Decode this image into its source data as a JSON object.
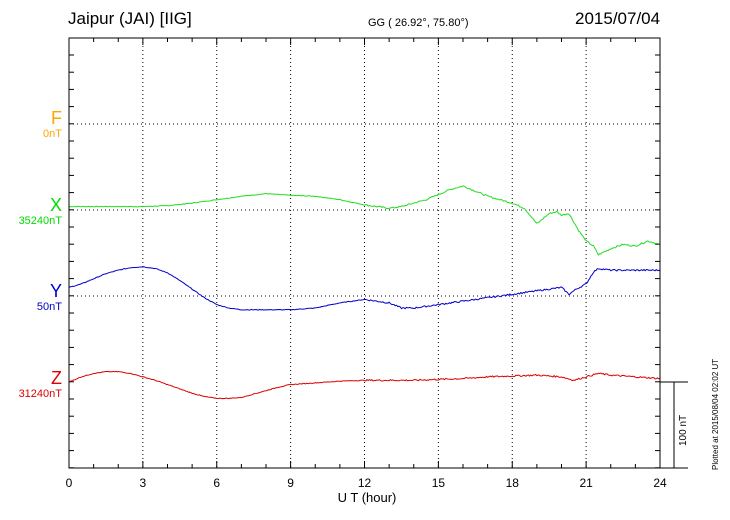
{
  "header": {
    "station": "Jaipur (JAI)  [IIG]",
    "coords": "GG ( 26.92°,  75.80°)",
    "date": "2015/07/04"
  },
  "footer": {
    "plotted": "Plotted at 2015/08/04 02:02 UT",
    "scale_label": "100 nT"
  },
  "chart_data": {
    "type": "line",
    "xlabel": "U T (hour)",
    "xlim": [
      0,
      24
    ],
    "xticks": [
      "0",
      "3",
      "6",
      "9",
      "12",
      "15",
      "18",
      "21",
      "24"
    ],
    "scale_bar_nT": 100,
    "grid": true,
    "channels": [
      {
        "name": "F",
        "baseline": "0nT",
        "color": "#FFA500"
      },
      {
        "name": "X",
        "baseline": "35240nT",
        "color": "#00DD00"
      },
      {
        "name": "Y",
        "baseline": "50nT",
        "color": "#0000CC"
      },
      {
        "name": "Z",
        "baseline": "31240nT",
        "color": "#DD0000"
      }
    ],
    "series": [
      {
        "name": "X",
        "color": "#22DD22",
        "x": [
          0,
          1,
          2,
          3,
          4,
          5,
          6,
          7,
          8,
          9,
          10,
          11,
          12,
          13,
          13.5,
          14,
          14.5,
          15,
          15.5,
          16,
          16.5,
          17,
          17.5,
          18,
          18.5,
          19,
          19.5,
          19.8,
          20,
          20.3,
          20.7,
          21,
          21.3,
          21.5,
          22,
          22.5,
          23,
          23.5,
          24
        ],
        "y": [
          4,
          4,
          4,
          4,
          5,
          8,
          12,
          16,
          19,
          17,
          16,
          12,
          6,
          2,
          4,
          8,
          12,
          18,
          24,
          28,
          22,
          16,
          12,
          8,
          2,
          -16,
          -4,
          -2,
          -6,
          -4,
          -24,
          -36,
          -42,
          -52,
          -45,
          -40,
          -42,
          -36,
          -40
        ]
      },
      {
        "name": "Y",
        "color": "#0000CC",
        "x": [
          0,
          0.5,
          1,
          1.5,
          2,
          2.5,
          3,
          3.5,
          4,
          4.5,
          5,
          5.5,
          6,
          6.5,
          7,
          8,
          9,
          10,
          11,
          12,
          12.5,
          13,
          13.5,
          14,
          15,
          16,
          17,
          18,
          19,
          20,
          20.3,
          20.6,
          21,
          21.3,
          21.5,
          22,
          23,
          24
        ],
        "y": [
          10,
          14,
          20,
          26,
          30,
          33,
          34,
          32,
          27,
          18,
          8,
          -2,
          -10,
          -14,
          -16,
          -16,
          -16,
          -14,
          -8,
          -4,
          -6,
          -8,
          -14,
          -14,
          -10,
          -6,
          -2,
          2,
          6,
          10,
          2,
          8,
          14,
          28,
          32,
          30,
          30,
          30
        ]
      },
      {
        "name": "Z",
        "color": "#DD0000",
        "x": [
          0,
          0.5,
          1,
          1.5,
          2,
          2.5,
          3,
          3.5,
          4,
          4.5,
          5,
          5.5,
          6,
          6.5,
          7,
          7.5,
          8,
          8.5,
          9,
          10,
          11,
          12,
          13,
          14,
          15,
          16,
          17,
          18,
          19,
          20,
          20.5,
          21,
          21.5,
          22,
          23,
          24
        ],
        "y": [
          0,
          6,
          10,
          12,
          12,
          10,
          6,
          2,
          -3,
          -8,
          -13,
          -17,
          -19,
          -19,
          -18,
          -14,
          -10,
          -6,
          -3,
          -1,
          1,
          2,
          2,
          2,
          3,
          4,
          6,
          7,
          8,
          6,
          2,
          6,
          10,
          8,
          6,
          4
        ]
      }
    ]
  }
}
